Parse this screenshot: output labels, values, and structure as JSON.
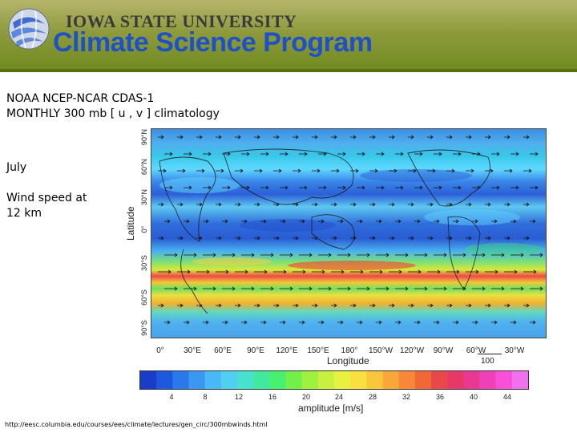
{
  "header": {
    "university": "IOWA STATE UNIVERSITY",
    "program": "Climate Science Program",
    "colors": {
      "band": "#8e9a3c",
      "program_text": "#1e50c8",
      "university_text": "#3b3b3b"
    }
  },
  "text": {
    "title_line1": "NOAA NCEP-NCAR CDAS-1",
    "title_line2": "MONTHLY 300 mb [ u , v ] climatology",
    "month": "July",
    "desc_line1": "Wind speed at",
    "desc_line2": "12 km"
  },
  "figure": {
    "lat_axis_label": "Latitude",
    "lat_ticks": [
      "90°N",
      "60°N",
      "30°N",
      "0°",
      "30°S",
      "60°S",
      "90°S"
    ],
    "lon_axis_label": "Longitude",
    "lon_ticks": [
      "0°",
      "30°E",
      "60°E",
      "90°E",
      "120°E",
      "150°E",
      "180°",
      "150°W",
      "120°W",
      "90°W",
      "60°W",
      "30°W"
    ],
    "vector_scale_label": "100",
    "colorbar_ticks": [
      "4",
      "8",
      "12",
      "16",
      "20",
      "24",
      "28",
      "32",
      "36",
      "40",
      "44"
    ],
    "colorbar_label": "amplitude [m/s]"
  },
  "footer": {
    "source_url": "http://eesc.columbia.edu/courses/ees/climate/lectures/gen_circ/300mbwinds.html"
  }
}
